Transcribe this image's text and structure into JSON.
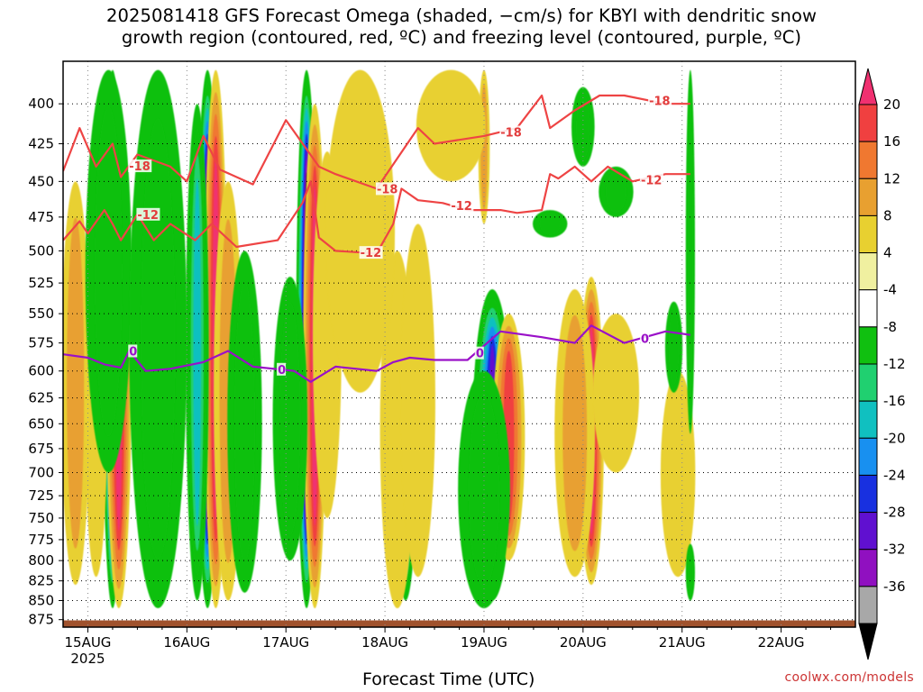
{
  "title": {
    "line1": "2025081418 GFS Forecast Omega (shaded, −cm/s) for KBYI with dendritic snow",
    "line2": "growth region (contoured, red, ºC) and freezing level (contoured, purple, ºC)"
  },
  "credit": "coolwx.com/models",
  "chart_data": {
    "type": "heatmap",
    "title": "2025081418 GFS Forecast Omega (shaded, −cm/s) for KBYI with dendritic snow growth region (contoured, red, ºC) and freezing level (contoured, purple, ºC)",
    "xlabel": "Forecast Time (UTC)",
    "ylabel": "",
    "x_ticks": [
      "15AUG",
      "16AUG",
      "17AUG",
      "18AUG",
      "19AUG",
      "20AUG",
      "21AUG",
      "22AUG"
    ],
    "x_tick_year": "2025",
    "x_range_hours": [
      -6,
      186
    ],
    "y_ticks": [
      400,
      425,
      450,
      475,
      500,
      525,
      550,
      575,
      600,
      625,
      650,
      675,
      700,
      725,
      750,
      775,
      800,
      825,
      850,
      875
    ],
    "y_range": [
      375,
      885
    ],
    "y_scale": "log",
    "grid": true,
    "colorbar": {
      "labels": [
        "20",
        "16",
        "12",
        "8",
        "4",
        "-4",
        "-8",
        "-12",
        "-16",
        "-20",
        "-24",
        "-28",
        "-32",
        "-36"
      ],
      "colors": [
        "#f03070",
        "#f04040",
        "#f07830",
        "#e8a030",
        "#e8d030",
        "#f0f0a0",
        "#ffffff",
        "#10c010",
        "#20d070",
        "#10c0c0",
        "#1890f0",
        "#1830e0",
        "#6010d0",
        "#9010c0",
        "#a8a8a8",
        "#000000"
      ]
    },
    "omega_features": [
      {
        "hour": 6,
        "p_top": 380,
        "p_bot": 860,
        "peak": -36,
        "width_h": 1.8
      },
      {
        "hour": 7.5,
        "p_top": 420,
        "p_bot": 860,
        "peak": 20,
        "width_h": 2.2
      },
      {
        "hour": -3,
        "p_top": 450,
        "p_bot": 830,
        "peak": 8,
        "width_h": 2.5
      },
      {
        "hour": 2,
        "p_top": 470,
        "p_bot": 820,
        "peak": 6,
        "width_h": 2.0
      },
      {
        "hour": 5,
        "p_top": 380,
        "p_bot": 700,
        "peak": -8,
        "width_h": 4.0
      },
      {
        "hour": 29,
        "p_top": 380,
        "p_bot": 860,
        "peak": -36,
        "width_h": 2.0
      },
      {
        "hour": 31,
        "p_top": 380,
        "p_bot": 860,
        "peak": 20,
        "width_h": 2.0
      },
      {
        "hour": 26.5,
        "p_top": 400,
        "p_bot": 850,
        "peak": -16,
        "width_h": 2.0
      },
      {
        "hour": 34,
        "p_top": 450,
        "p_bot": 850,
        "peak": 8,
        "width_h": 2.5
      },
      {
        "hour": 38,
        "p_top": 500,
        "p_bot": 840,
        "peak": -8,
        "width_h": 3.0
      },
      {
        "hour": 53,
        "p_top": 380,
        "p_bot": 860,
        "peak": -36,
        "width_h": 1.8
      },
      {
        "hour": 55,
        "p_top": 400,
        "p_bot": 860,
        "peak": 20,
        "width_h": 2.0
      },
      {
        "hour": 49,
        "p_top": 520,
        "p_bot": 800,
        "peak": -8,
        "width_h": 3.0
      },
      {
        "hour": 58,
        "p_top": 430,
        "p_bot": 750,
        "peak": 6,
        "width_h": 2.5
      },
      {
        "hour": 77,
        "p_top": 520,
        "p_bot": 850,
        "peak": -24,
        "width_h": 2.0
      },
      {
        "hour": 75,
        "p_top": 500,
        "p_bot": 860,
        "peak": 6,
        "width_h": 3.0
      },
      {
        "hour": 80,
        "p_top": 480,
        "p_bot": 820,
        "peak": 4,
        "width_h": 3.0
      },
      {
        "hour": 98,
        "p_top": 530,
        "p_bot": 850,
        "peak": -28,
        "width_h": 3.5
      },
      {
        "hour": 102,
        "p_top": 550,
        "p_bot": 800,
        "peak": 16,
        "width_h": 2.8
      },
      {
        "hour": 96,
        "p_top": 600,
        "p_bot": 860,
        "peak": -8,
        "width_h": 4.5
      },
      {
        "hour": 122,
        "p_top": 520,
        "p_bot": 830,
        "peak": 20,
        "width_h": 2.2
      },
      {
        "hour": 118,
        "p_top": 530,
        "p_bot": 820,
        "peak": 8,
        "width_h": 3.5
      },
      {
        "hour": 128,
        "p_top": 550,
        "p_bot": 700,
        "peak": 4,
        "width_h": 4.0
      },
      {
        "hour": 143,
        "p_top": 600,
        "p_bot": 820,
        "peak": 4,
        "width_h": 3.0
      },
      {
        "hour": 142,
        "p_top": 540,
        "p_bot": 620,
        "peak": -8,
        "width_h": 1.5
      },
      {
        "hour": 120,
        "p_top": 390,
        "p_bot": 440,
        "peak": -8,
        "width_h": 2.0
      },
      {
        "hour": 112,
        "p_top": 470,
        "p_bot": 490,
        "peak": -8,
        "width_h": 3.0
      },
      {
        "hour": 128,
        "p_top": 440,
        "p_bot": 475,
        "peak": -8,
        "width_h": 3.0
      },
      {
        "hour": 146,
        "p_top": 380,
        "p_bot": 660,
        "peak": -8,
        "width_h": 0.8
      },
      {
        "hour": 146,
        "p_top": 780,
        "p_bot": 850,
        "peak": -8,
        "width_h": 0.8
      },
      {
        "hour": 96,
        "p_top": 380,
        "p_bot": 480,
        "peak": 8,
        "width_h": 1.0
      },
      {
        "hour": 17,
        "p_top": 380,
        "p_bot": 860,
        "peak": -8,
        "width_h": 5.0
      },
      {
        "hour": 66,
        "p_top": 380,
        "p_bot": 620,
        "peak": 4,
        "width_h": 6.0
      },
      {
        "hour": 88,
        "p_top": 380,
        "p_bot": 450,
        "peak": 4,
        "width_h": 6.0
      }
    ],
    "series": [
      {
        "label": "-18",
        "color": "red",
        "x": [
          -6,
          -2,
          2,
          6,
          8,
          12,
          20,
          24,
          28,
          32,
          40,
          48,
          56,
          60,
          70,
          80,
          84,
          96,
          104,
          110,
          112,
          118,
          124,
          130,
          140,
          146
        ],
        "y": [
          443,
          415,
          440,
          425,
          447,
          432,
          440,
          450,
          420,
          442,
          452,
          410,
          440,
          445,
          455,
          415,
          425,
          420,
          415,
          395,
          415,
          404,
          395,
          395,
          400,
          400
        ]
      },
      {
        "label": "-12",
        "color": "red",
        "x": [
          -6,
          -2,
          0,
          4,
          6,
          8,
          12,
          16,
          20,
          26,
          30,
          36,
          46,
          52,
          54,
          56,
          60,
          70,
          74,
          76,
          80,
          86,
          92,
          96,
          100,
          104,
          110,
          112,
          114,
          118,
          122,
          126,
          132,
          140,
          146
        ],
        "y": [
          492,
          478,
          487,
          470,
          480,
          492,
          473,
          492,
          480,
          492,
          480,
          497,
          492,
          465,
          450,
          490,
          500,
          502,
          480,
          455,
          463,
          465,
          470,
          470,
          470,
          472,
          470,
          445,
          448,
          440,
          450,
          440,
          450,
          445,
          445
        ]
      },
      {
        "label": "0",
        "color": "purple",
        "x": [
          -6,
          0,
          4,
          8,
          10,
          14,
          20,
          28,
          34,
          40,
          50,
          54,
          60,
          70,
          74,
          78,
          84,
          92,
          100,
          110,
          118,
          122,
          130,
          140,
          146
        ],
        "y": [
          585,
          588,
          594,
          597,
          582,
          600,
          598,
          592,
          582,
          596,
          600,
          610,
          596,
          600,
          592,
          588,
          590,
          590,
          565,
          570,
          575,
          560,
          575,
          565,
          568
        ]
      }
    ]
  }
}
